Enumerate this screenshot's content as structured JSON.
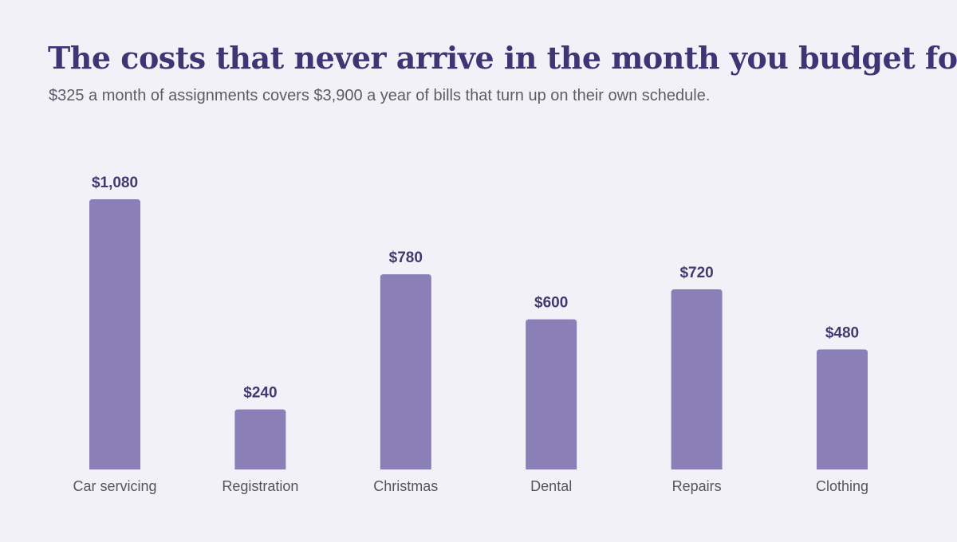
{
  "title": "The costs that never arrive in the month you budget for",
  "subtitle": "$325 a month of assignments covers $3,900 a year of bills that turn up on their own schedule.",
  "colors": {
    "bar": "#8b7fb7",
    "title": "#3f3575",
    "value_label": "#44396f",
    "background": "#f3f1f8"
  },
  "chart_data": {
    "type": "bar",
    "categories": [
      "Car servicing",
      "Registration",
      "Christmas",
      "Dental",
      "Repairs",
      "Clothing"
    ],
    "values": [
      1080,
      240,
      780,
      600,
      720,
      480
    ],
    "value_labels": [
      "$1,080",
      "$240",
      "$780",
      "$600",
      "$720",
      "$480"
    ],
    "title": "The costs that never arrive in the month you budget for",
    "subtitle": "$325 a month of assignments covers $3,900 a year of bills that turn up on their own schedule.",
    "xlabel": "",
    "ylabel": "",
    "ylim": [
      0,
      1080
    ],
    "grid": false,
    "legend": "none"
  }
}
